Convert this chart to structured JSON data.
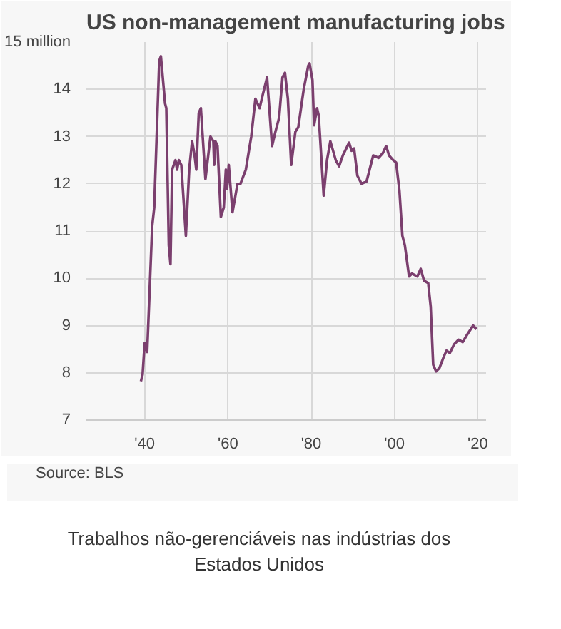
{
  "chart_data": {
    "type": "line",
    "title": "US non-management manufacturing jobs",
    "annotations": [
      "Source: BLS",
      "Trabalhos não-gerenciáveis nas indústrias dos Estados Unidos"
    ],
    "xlim": [
      1926,
      2022
    ],
    "xticks": [
      {
        "value": 1940,
        "label": "'40"
      },
      {
        "value": 1960,
        "label": "'60"
      },
      {
        "value": 1980,
        "label": "'80"
      },
      {
        "value": 2000,
        "label": "'00"
      },
      {
        "value": 2020,
        "label": "'20"
      }
    ],
    "ylim": [
      7,
      15
    ],
    "yticks": [
      7,
      8,
      9,
      10,
      11,
      12,
      13,
      14,
      {
        "value": 15,
        "label": "15 million"
      }
    ],
    "grid": true,
    "marker": "none",
    "line_style": "solid",
    "series": [
      {
        "color": "#7b3f6e",
        "x": [
          1939.1,
          1939.5,
          1940,
          1940.6,
          1941.8,
          1942.3,
          1943.5,
          1943.9,
          1944.9,
          1945.2,
          1945.8,
          1946.2,
          1946.6,
          1947.4,
          1947.8,
          1948.2,
          1948.8,
          1949.9,
          1950.7,
          1951.4,
          1952,
          1952.4,
          1953,
          1953.5,
          1954.6,
          1955.8,
          1956.5,
          1956.7,
          1957,
          1957.5,
          1958.3,
          1959,
          1959.5,
          1959.8,
          1960.2,
          1961.1,
          1962.3,
          1963,
          1964.3,
          1965.6,
          1966.6,
          1967.6,
          1968.4,
          1969.4,
          1970.6,
          1971.4,
          1972.3,
          1973.1,
          1973.7,
          1974.4,
          1975.2,
          1976.2,
          1976.9,
          1978.2,
          1979.3,
          1979.6,
          1980.3,
          1980.7,
          1981.4,
          1981.8,
          1983,
          1983.8,
          1984.6,
          1985.9,
          1986.7,
          1987.6,
          1989.1,
          1989.7,
          1990.3,
          1991.1,
          1992.1,
          1993.3,
          1994.9,
          1996.2,
          1997.2,
          1998,
          1998.7,
          1999.7,
          2000.4,
          2001.2,
          2001.9,
          2002.5,
          2003.5,
          2004.2,
          2005.5,
          2006.3,
          2007.1,
          2008.1,
          2008.7,
          2009.3,
          2010,
          2010.8,
          2011.8,
          2012.5,
          2013.3,
          2014.3,
          2015.4,
          2016.4,
          2017.4,
          2018.9,
          2019.7
        ],
        "values": [
          7.82,
          7.96,
          8.63,
          8.44,
          11.1,
          11.5,
          14.6,
          14.7,
          13.7,
          13.6,
          10.7,
          10.3,
          12.3,
          12.5,
          12.3,
          12.5,
          12.4,
          10.9,
          12.3,
          12.9,
          12.6,
          12.3,
          13.5,
          13.6,
          12.1,
          13.0,
          12.9,
          12.4,
          12.9,
          12.8,
          11.3,
          11.5,
          12.3,
          11.9,
          12.4,
          11.4,
          12.0,
          12.0,
          12.3,
          13.0,
          13.8,
          13.6,
          13.9,
          14.25,
          12.8,
          13.1,
          13.4,
          14.25,
          14.35,
          13.8,
          12.4,
          13.1,
          13.2,
          14.0,
          14.5,
          14.55,
          14.2,
          13.24,
          13.6,
          13.45,
          11.75,
          12.5,
          12.9,
          12.5,
          12.37,
          12.6,
          12.87,
          12.7,
          12.75,
          12.17,
          12.0,
          12.05,
          12.6,
          12.55,
          12.65,
          12.8,
          12.6,
          12.5,
          12.45,
          11.85,
          10.9,
          10.7,
          10.04,
          10.1,
          10.04,
          10.2,
          9.95,
          9.9,
          9.4,
          8.17,
          8.03,
          8.1,
          8.33,
          8.47,
          8.42,
          8.6,
          8.7,
          8.65,
          8.8,
          9.0,
          8.92
        ]
      }
    ]
  }
}
